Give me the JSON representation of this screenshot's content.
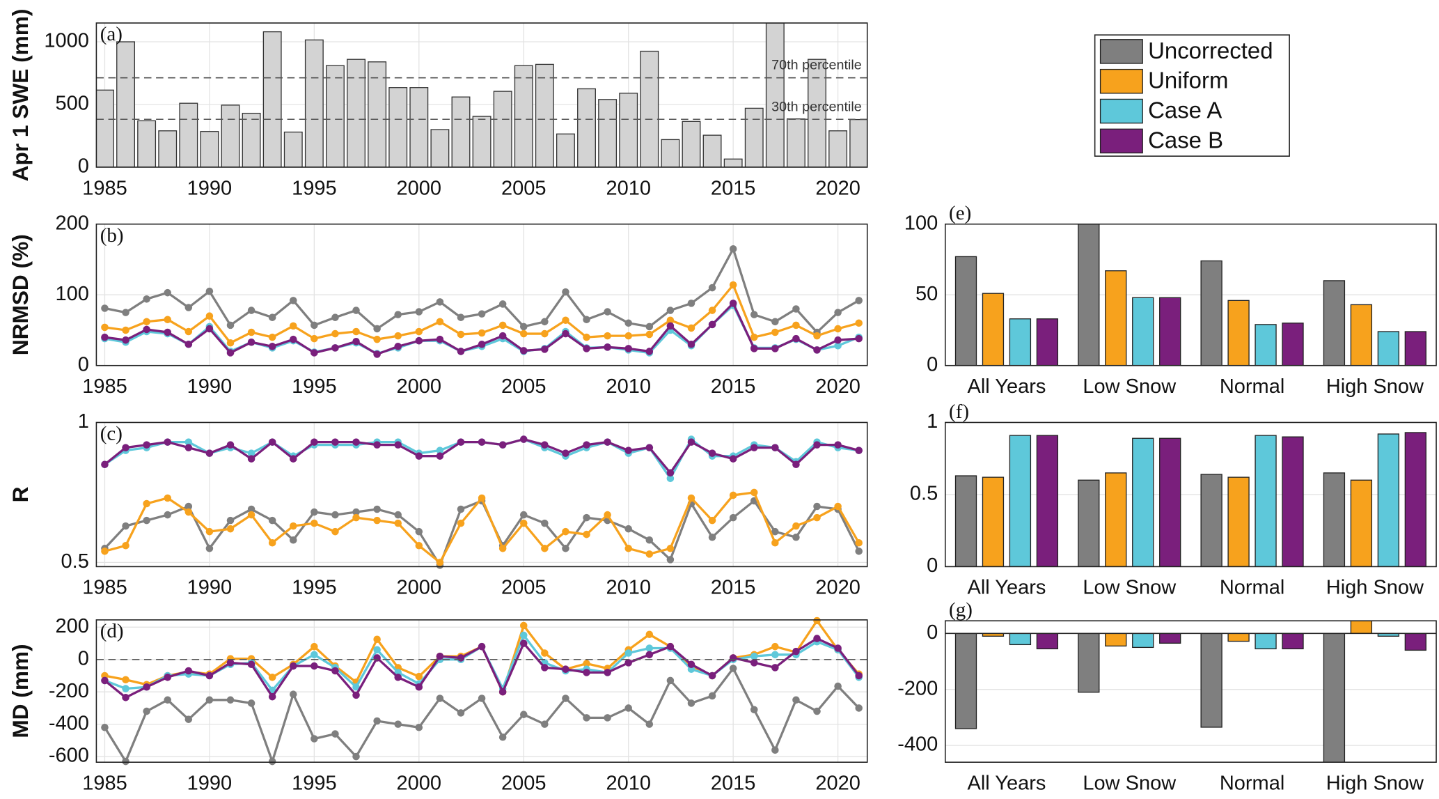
{
  "legend_position": "top-right",
  "chart_data": [
    {
      "type": "bar",
      "panel": "(a)",
      "ylabel": "Apr 1 SWE (mm)",
      "color": "#d3d3d3",
      "grid": true,
      "x": [
        1985,
        1986,
        1987,
        1988,
        1989,
        1990,
        1991,
        1992,
        1993,
        1994,
        1995,
        1996,
        1997,
        1998,
        1999,
        2000,
        2001,
        2002,
        2003,
        2004,
        2005,
        2006,
        2007,
        2008,
        2009,
        2010,
        2011,
        2012,
        2013,
        2014,
        2015,
        2016,
        2017,
        2018,
        2019,
        2020,
        2021
      ],
      "values": [
        615,
        1000,
        370,
        290,
        510,
        285,
        495,
        430,
        1080,
        280,
        1015,
        810,
        860,
        840,
        635,
        635,
        300,
        560,
        405,
        605,
        810,
        820,
        265,
        625,
        540,
        590,
        925,
        220,
        365,
        255,
        65,
        470,
        1150,
        385,
        860,
        290,
        380
      ],
      "reference_lines": [
        {
          "value": 713,
          "label": "70th percentile"
        },
        {
          "value": 382,
          "label": "30th percentile"
        }
      ],
      "xlim": [
        1984.6,
        2021.4
      ],
      "xticks": [
        1985,
        1990,
        1995,
        2000,
        2005,
        2010,
        2015,
        2020
      ],
      "ylim": [
        0,
        1150
      ],
      "yticks": [
        0,
        500,
        1000
      ]
    },
    {
      "type": "line",
      "panel": "(b)",
      "ylabel": "NRMSD (%)",
      "grid": true,
      "x": [
        1985,
        1986,
        1987,
        1988,
        1989,
        1990,
        1991,
        1992,
        1993,
        1994,
        1995,
        1996,
        1997,
        1998,
        1999,
        2000,
        2001,
        2002,
        2003,
        2004,
        2005,
        2006,
        2007,
        2008,
        2009,
        2010,
        2011,
        2012,
        2013,
        2014,
        2015,
        2016,
        2017,
        2018,
        2019,
        2020,
        2021
      ],
      "series": [
        {
          "name": "Uncorrected",
          "color": "#7f7f7f",
          "values": [
            81,
            75,
            94,
            103,
            82,
            105,
            57,
            78,
            68,
            92,
            57,
            68,
            78,
            52,
            72,
            76,
            90,
            68,
            73,
            87,
            55,
            62,
            104,
            65,
            76,
            60,
            55,
            78,
            88,
            110,
            165,
            72,
            62,
            80,
            47,
            75,
            92
          ]
        },
        {
          "name": "Uniform",
          "color": "#f7a21d",
          "values": [
            54,
            50,
            62,
            65,
            48,
            70,
            32,
            47,
            40,
            56,
            38,
            45,
            48,
            37,
            42,
            48,
            62,
            44,
            46,
            57,
            45,
            45,
            64,
            40,
            42,
            42,
            44,
            64,
            53,
            78,
            114,
            40,
            47,
            57,
            42,
            52,
            60
          ]
        },
        {
          "name": "Case A",
          "color": "#5ec8da",
          "values": [
            38,
            33,
            48,
            45,
            30,
            55,
            20,
            33,
            25,
            35,
            19,
            25,
            32,
            17,
            25,
            35,
            35,
            20,
            27,
            38,
            20,
            24,
            48,
            25,
            26,
            22,
            18,
            50,
            28,
            58,
            85,
            25,
            25,
            37,
            22,
            28,
            40
          ]
        },
        {
          "name": "Case B",
          "color": "#7a1f7c",
          "values": [
            40,
            36,
            51,
            47,
            30,
            52,
            18,
            33,
            27,
            37,
            18,
            25,
            34,
            16,
            27,
            35,
            37,
            20,
            30,
            42,
            21,
            23,
            45,
            24,
            26,
            24,
            20,
            56,
            30,
            58,
            88,
            24,
            24,
            38,
            22,
            36,
            38
          ]
        }
      ],
      "xlim": [
        1984.6,
        2021.4
      ],
      "xticks": [
        1985,
        1990,
        1995,
        2000,
        2005,
        2010,
        2015,
        2020
      ],
      "ylim": [
        0,
        200
      ],
      "yticks": [
        0,
        100,
        200
      ]
    },
    {
      "type": "line",
      "panel": "(c)",
      "ylabel": "R",
      "grid": true,
      "x": [
        1985,
        1986,
        1987,
        1988,
        1989,
        1990,
        1991,
        1992,
        1993,
        1994,
        1995,
        1996,
        1997,
        1998,
        1999,
        2000,
        2001,
        2002,
        2003,
        2004,
        2005,
        2006,
        2007,
        2008,
        2009,
        2010,
        2011,
        2012,
        2013,
        2014,
        2015,
        2016,
        2017,
        2018,
        2019,
        2020,
        2021
      ],
      "series": [
        {
          "name": "Uncorrected",
          "color": "#7f7f7f",
          "values": [
            0.55,
            0.63,
            0.65,
            0.67,
            0.7,
            0.55,
            0.65,
            0.69,
            0.65,
            0.58,
            0.68,
            0.67,
            0.68,
            0.69,
            0.67,
            0.61,
            0.49,
            0.69,
            0.72,
            0.56,
            0.67,
            0.64,
            0.55,
            0.66,
            0.65,
            0.62,
            0.58,
            0.51,
            0.71,
            0.59,
            0.66,
            0.72,
            0.61,
            0.59,
            0.7,
            0.69,
            0.54
          ]
        },
        {
          "name": "Uniform",
          "color": "#f7a21d",
          "values": [
            0.54,
            0.56,
            0.71,
            0.73,
            0.68,
            0.61,
            0.62,
            0.67,
            0.57,
            0.63,
            0.64,
            0.61,
            0.66,
            0.65,
            0.64,
            0.56,
            0.5,
            0.64,
            0.73,
            0.55,
            0.64,
            0.55,
            0.61,
            0.6,
            0.67,
            0.55,
            0.53,
            0.55,
            0.73,
            0.65,
            0.74,
            0.75,
            0.57,
            0.63,
            0.66,
            0.7,
            0.57
          ]
        },
        {
          "name": "Case A",
          "color": "#5ec8da",
          "values": [
            0.85,
            0.9,
            0.91,
            0.93,
            0.93,
            0.89,
            0.91,
            0.89,
            0.93,
            0.88,
            0.92,
            0.92,
            0.92,
            0.93,
            0.93,
            0.89,
            0.9,
            0.93,
            0.93,
            0.92,
            0.94,
            0.91,
            0.88,
            0.91,
            0.93,
            0.89,
            0.91,
            0.8,
            0.94,
            0.88,
            0.88,
            0.92,
            0.91,
            0.86,
            0.93,
            0.91,
            0.9
          ]
        },
        {
          "name": "Case B",
          "color": "#7a1f7c",
          "values": [
            0.85,
            0.91,
            0.92,
            0.93,
            0.91,
            0.89,
            0.92,
            0.87,
            0.93,
            0.87,
            0.93,
            0.93,
            0.93,
            0.92,
            0.92,
            0.88,
            0.88,
            0.93,
            0.93,
            0.92,
            0.94,
            0.92,
            0.89,
            0.92,
            0.93,
            0.9,
            0.91,
            0.82,
            0.93,
            0.89,
            0.87,
            0.91,
            0.91,
            0.85,
            0.92,
            0.92,
            0.9
          ]
        }
      ],
      "xlim": [
        1984.6,
        2021.4
      ],
      "xticks": [
        1985,
        1990,
        1995,
        2000,
        2005,
        2010,
        2015,
        2020
      ],
      "ylim": [
        0.485,
        1
      ],
      "yticks": [
        0.5,
        1
      ]
    },
    {
      "type": "line",
      "panel": "(d)",
      "ylabel": "MD (mm)",
      "grid": true,
      "x": [
        1985,
        1986,
        1987,
        1988,
        1989,
        1990,
        1991,
        1992,
        1993,
        1994,
        1995,
        1996,
        1997,
        1998,
        1999,
        2000,
        2001,
        2002,
        2003,
        2004,
        2005,
        2006,
        2007,
        2008,
        2009,
        2010,
        2011,
        2012,
        2013,
        2014,
        2015,
        2016,
        2017,
        2018,
        2019,
        2020,
        2021
      ],
      "series": [
        {
          "name": "Uncorrected",
          "color": "#7f7f7f",
          "values": [
            -420,
            -630,
            -320,
            -250,
            -370,
            -250,
            -250,
            -270,
            -630,
            -215,
            -490,
            -460,
            -600,
            -380,
            -400,
            -420,
            -240,
            -330,
            -240,
            -480,
            -340,
            -400,
            -240,
            -360,
            -360,
            -300,
            -400,
            -130,
            -270,
            -225,
            -55,
            -310,
            -560,
            -250,
            -320,
            -165,
            -300
          ]
        },
        {
          "name": "Uniform",
          "color": "#f7a21d",
          "values": [
            -100,
            -125,
            -155,
            -100,
            -75,
            -90,
            5,
            5,
            -110,
            -30,
            80,
            -40,
            -140,
            125,
            -50,
            -105,
            20,
            20,
            80,
            -200,
            210,
            40,
            -60,
            -25,
            -55,
            60,
            155,
            80,
            -40,
            -100,
            10,
            30,
            80,
            45,
            240,
            60,
            -90
          ]
        },
        {
          "name": "Case A",
          "color": "#5ec8da",
          "values": [
            -130,
            -180,
            -170,
            -100,
            -90,
            -100,
            -30,
            -20,
            -190,
            -40,
            30,
            -50,
            -170,
            60,
            -80,
            -150,
            0,
            0,
            80,
            -180,
            150,
            -20,
            -70,
            -60,
            -80,
            40,
            70,
            70,
            -60,
            -100,
            0,
            20,
            30,
            30,
            110,
            60,
            -110
          ]
        },
        {
          "name": "Case B",
          "color": "#7a1f7c",
          "values": [
            -130,
            -235,
            -170,
            -110,
            -70,
            -100,
            -20,
            -30,
            -230,
            -40,
            -40,
            -70,
            -220,
            10,
            -110,
            -170,
            20,
            10,
            80,
            -200,
            100,
            -50,
            -60,
            -80,
            -80,
            -20,
            30,
            80,
            -30,
            -100,
            10,
            -20,
            -50,
            50,
            130,
            70,
            -100
          ]
        }
      ],
      "reference_lines": [
        {
          "value": 0
        }
      ],
      "xlim": [
        1984.6,
        2021.4
      ],
      "xticks": [
        1985,
        1990,
        1995,
        2000,
        2005,
        2010,
        2015,
        2020
      ],
      "ylim": [
        -635,
        245
      ],
      "yticks": [
        -600,
        -400,
        -200,
        0,
        200
      ]
    },
    {
      "type": "grouped-bar",
      "panel": "(e)",
      "grid": true,
      "categories": [
        "All Years",
        "Low Snow",
        "Normal",
        "High Snow"
      ],
      "series": [
        {
          "name": "Uncorrected",
          "color": "#7f7f7f",
          "values": [
            77,
            100,
            74,
            60
          ]
        },
        {
          "name": "Uniform",
          "color": "#f7a21d",
          "values": [
            51,
            67,
            46,
            43
          ]
        },
        {
          "name": "Case A",
          "color": "#5ec8da",
          "values": [
            33,
            48,
            29,
            24
          ]
        },
        {
          "name": "Case B",
          "color": "#7a1f7c",
          "values": [
            33,
            48,
            30,
            24
          ]
        }
      ],
      "ylim": [
        0,
        100
      ],
      "yticks": [
        0,
        50,
        100
      ]
    },
    {
      "type": "grouped-bar",
      "panel": "(f)",
      "grid": true,
      "categories": [
        "All Years",
        "Low Snow",
        "Normal",
        "High Snow"
      ],
      "series": [
        {
          "name": "Uncorrected",
          "color": "#7f7f7f",
          "values": [
            0.63,
            0.6,
            0.64,
            0.65
          ]
        },
        {
          "name": "Uniform",
          "color": "#f7a21d",
          "values": [
            0.62,
            0.65,
            0.62,
            0.6
          ]
        },
        {
          "name": "Case A",
          "color": "#5ec8da",
          "values": [
            0.91,
            0.89,
            0.91,
            0.92
          ]
        },
        {
          "name": "Case B",
          "color": "#7a1f7c",
          "values": [
            0.91,
            0.89,
            0.9,
            0.93
          ]
        }
      ],
      "ylim": [
        0,
        1
      ],
      "yticks": [
        0,
        0.5,
        1
      ]
    },
    {
      "type": "grouped-bar",
      "panel": "(g)",
      "grid": true,
      "categories": [
        "All Years",
        "Low Snow",
        "Normal",
        "High Snow"
      ],
      "series": [
        {
          "name": "Uncorrected",
          "color": "#7f7f7f",
          "values": [
            -340,
            -210,
            -335,
            -460
          ]
        },
        {
          "name": "Uniform",
          "color": "#f7a21d",
          "values": [
            -10,
            -45,
            -28,
            45
          ]
        },
        {
          "name": "Case A",
          "color": "#5ec8da",
          "values": [
            -40,
            -50,
            -55,
            -10
          ]
        },
        {
          "name": "Case B",
          "color": "#7a1f7c",
          "values": [
            -55,
            -35,
            -55,
            -60
          ]
        }
      ],
      "ylim": [
        -460,
        45
      ],
      "yticks": [
        -400,
        -200,
        0
      ]
    }
  ]
}
